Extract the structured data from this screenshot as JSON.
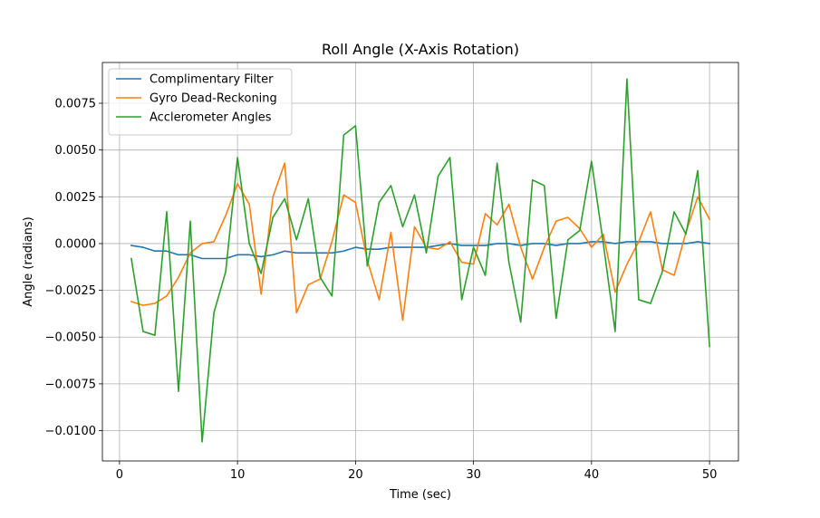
{
  "chart_data": {
    "type": "line",
    "title": "Roll Angle (X-Axis Rotation)",
    "xlabel": "Time (sec)",
    "ylabel": "Angle (radians)",
    "xlim": [
      -1.45,
      52.45
    ],
    "ylim": [
      -0.01162,
      0.00968
    ],
    "xticks": [
      0,
      10,
      20,
      30,
      40,
      50
    ],
    "xtick_labels": [
      "0",
      "10",
      "20",
      "30",
      "40",
      "50"
    ],
    "yticks": [
      -0.01,
      -0.0075,
      -0.005,
      -0.0025,
      0.0,
      0.0025,
      0.005,
      0.0075
    ],
    "ytick_labels": [
      "−0.0100",
      "−0.0075",
      "−0.0050",
      "−0.0025",
      "0.0000",
      "0.0025",
      "0.0050",
      "0.0075"
    ],
    "grid": true,
    "legend_position": "top-left",
    "x": [
      1,
      2,
      3,
      4,
      5,
      6,
      7,
      8,
      9,
      10,
      11,
      12,
      13,
      14,
      15,
      16,
      17,
      18,
      19,
      20,
      21,
      22,
      23,
      24,
      25,
      26,
      27,
      28,
      29,
      30,
      31,
      32,
      33,
      34,
      35,
      36,
      37,
      38,
      39,
      40,
      41,
      42,
      43,
      44,
      45,
      46,
      47,
      48,
      49,
      50
    ],
    "series": [
      {
        "name": "Complimentary Filter",
        "color": "#1f77b4",
        "values": [
          -0.0001,
          -0.0002,
          -0.0004,
          -0.0004,
          -0.0006,
          -0.0006,
          -0.0008,
          -0.0008,
          -0.0008,
          -0.0006,
          -0.0006,
          -0.0007,
          -0.0006,
          -0.0004,
          -0.0005,
          -0.0005,
          -0.0005,
          -0.0005,
          -0.0004,
          -0.0002,
          -0.0003,
          -0.0003,
          -0.0002,
          -0.0002,
          -0.0002,
          -0.0002,
          -0.0001,
          0.0,
          -0.0001,
          -0.0001,
          -0.0001,
          0.0,
          0.0,
          -0.0001,
          0.0,
          0.0,
          -0.0001,
          0.0,
          0.0,
          0.0001,
          0.0001,
          0.0,
          0.0001,
          0.0001,
          0.0001,
          0.0,
          0.0,
          0.0,
          0.0001,
          0.0
        ]
      },
      {
        "name": "Gyro Dead-Reckoning",
        "color": "#ff7f0e",
        "values": [
          -0.0031,
          -0.0033,
          -0.0032,
          -0.0028,
          -0.0018,
          -0.0005,
          0.0,
          0.0001,
          0.0015,
          0.0032,
          0.0021,
          -0.0027,
          0.0025,
          0.0043,
          -0.0037,
          -0.0022,
          -0.0019,
          0.0001,
          0.0026,
          0.0022,
          -0.0009,
          -0.003,
          0.0006,
          -0.0041,
          0.0009,
          -0.0002,
          -0.0003,
          0.0001,
          -0.001,
          -0.0011,
          0.0016,
          0.001,
          0.0021,
          -0.0002,
          -0.0019,
          -0.0002,
          0.0012,
          0.0014,
          0.0008,
          -0.0002,
          0.0005,
          -0.0026,
          -0.0011,
          0.0001,
          0.0017,
          -0.0014,
          -0.0017,
          0.0006,
          0.0025,
          0.0013
        ]
      },
      {
        "name": "Acclerometer Angles",
        "color": "#2ca02c",
        "values": [
          -0.0008,
          -0.0047,
          -0.0049,
          0.0017,
          -0.0079,
          0.0012,
          -0.0106,
          -0.0037,
          -0.0015,
          0.0046,
          0.0,
          -0.0016,
          0.0014,
          0.0024,
          0.0002,
          0.0024,
          -0.0018,
          -0.0028,
          0.0058,
          0.0063,
          -0.0012,
          0.0022,
          0.0031,
          0.0009,
          0.0026,
          -0.0005,
          0.0036,
          0.0046,
          -0.003,
          -0.0002,
          -0.0017,
          0.0043,
          -0.001,
          -0.0042,
          0.0034,
          0.0031,
          -0.004,
          0.0002,
          0.0007,
          0.0044,
          0.0,
          -0.0047,
          0.0088,
          -0.003,
          -0.0032,
          -0.0015,
          0.0017,
          0.0005,
          0.0039,
          -0.0055
        ]
      }
    ]
  }
}
